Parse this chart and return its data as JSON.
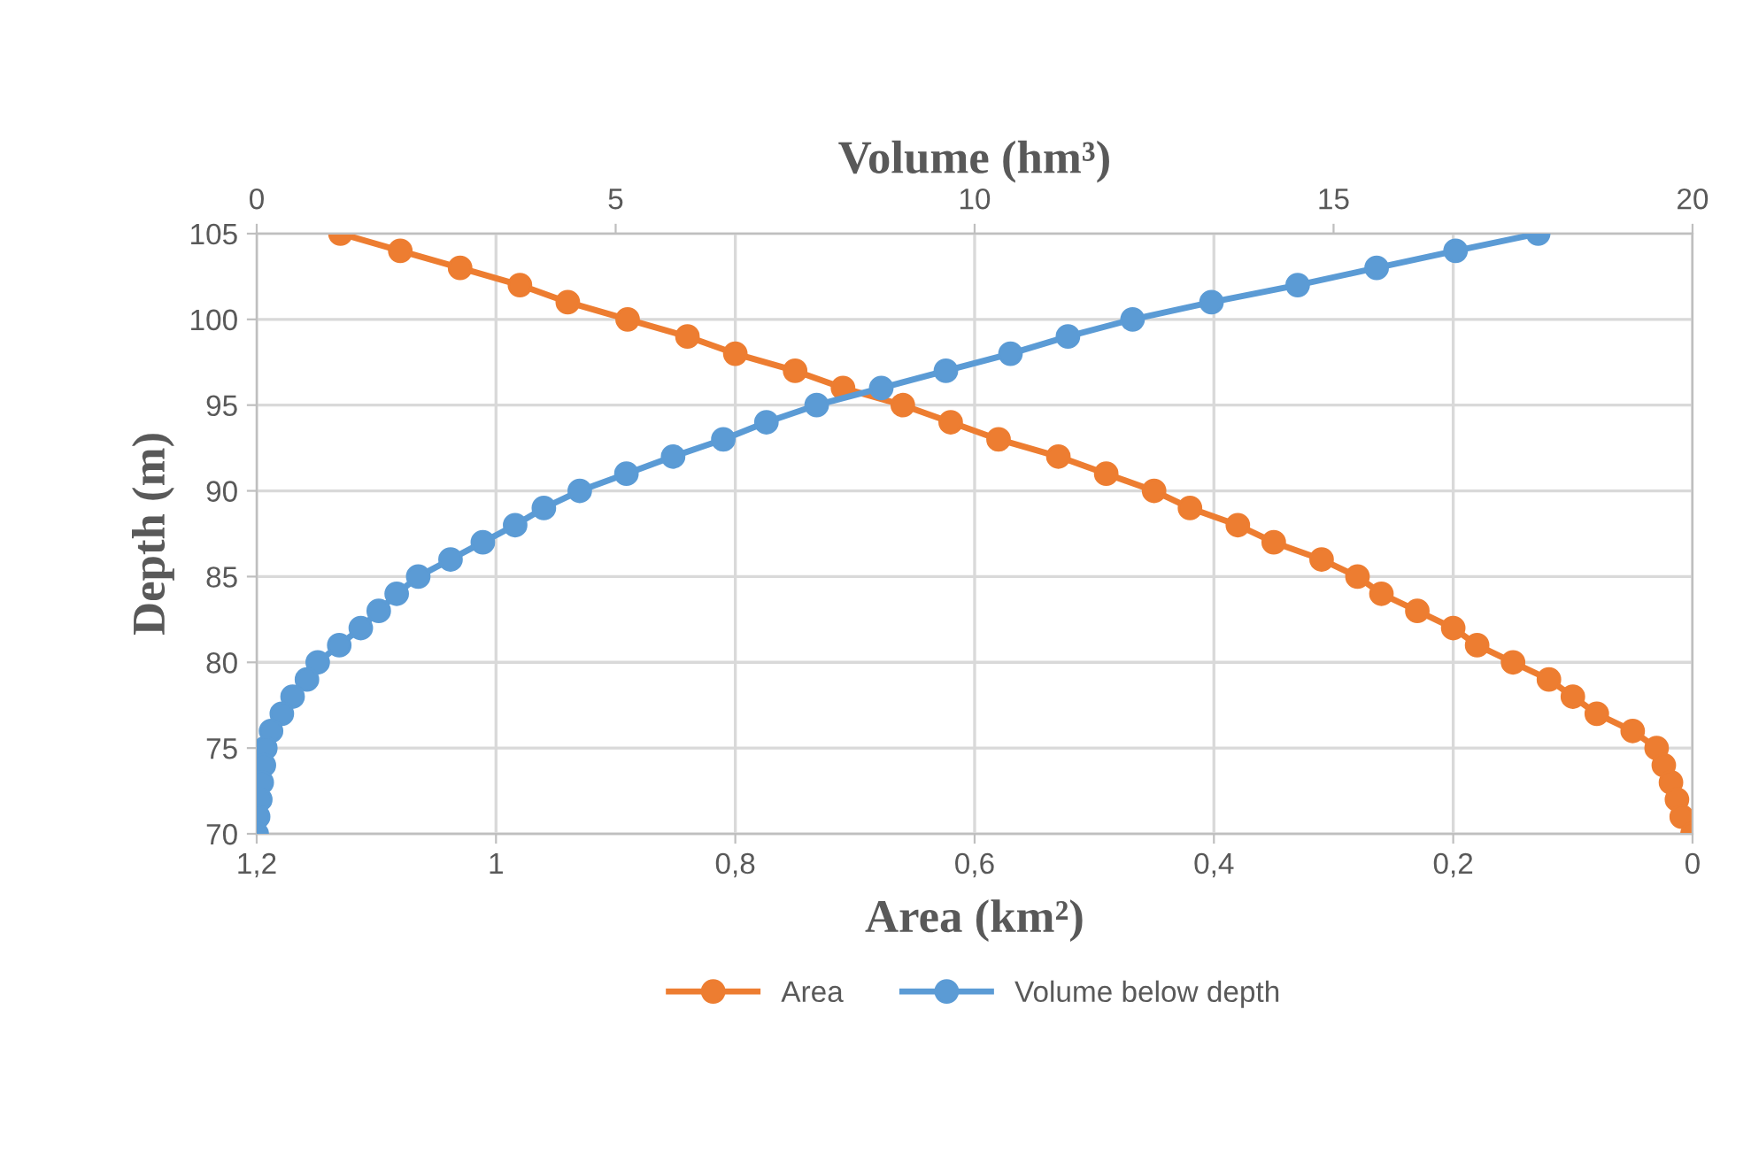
{
  "chart_data": {
    "type": "line",
    "xlabel": "Area (km²)",
    "x2label": "Volume (hm³)",
    "ylabel": "Depth (m)",
    "xlim": [
      1.2,
      0
    ],
    "xticks": [
      {
        "value": 1.2,
        "label": "1,2"
      },
      1,
      {
        "value": 0.8,
        "label": "0,8"
      },
      {
        "value": 0.6,
        "label": "0,6"
      },
      {
        "value": 0.4,
        "label": "0,4"
      },
      {
        "value": 0.2,
        "label": "0,2"
      },
      0
    ],
    "x2lim": [
      0,
      20
    ],
    "x2ticks": [
      0,
      5,
      10,
      15,
      20
    ],
    "ylim": [
      70,
      105
    ],
    "yticks": [
      70,
      75,
      80,
      85,
      90,
      95,
      100,
      105
    ],
    "grid": true,
    "legend": "bottom",
    "marker": "circle",
    "line_style": "solid",
    "series": [
      {
        "name": "Area",
        "color": "#ed7d31",
        "x": [
          1.13,
          1.08,
          1.03,
          0.98,
          0.94,
          0.89,
          0.84,
          0.8,
          0.75,
          0.71,
          0.66,
          0.62,
          0.58,
          0.53,
          0.49,
          0.45,
          0.42,
          0.38,
          0.35,
          0.31,
          0.28,
          0.26,
          0.23,
          0.2,
          0.18,
          0.15,
          0.12,
          0.1,
          0.08,
          0.05,
          0.03,
          0.024,
          0.018,
          0.013,
          0.009,
          0.0
        ],
        "values": [
          105,
          104,
          103,
          102,
          101,
          100,
          99,
          98,
          97,
          96,
          95,
          94,
          93,
          92,
          91,
          90,
          89,
          88,
          87,
          86,
          85,
          84,
          83,
          82,
          81,
          80,
          79,
          78,
          77,
          76,
          75,
          74,
          73,
          72,
          71,
          70
        ]
      },
      {
        "name": "Volume below depth",
        "color": "#5b9bd5",
        "axis": "x2",
        "x": [
          17.85,
          16.7,
          15.6,
          14.5,
          13.3,
          12.2,
          11.3,
          10.5,
          9.6,
          8.7,
          7.8,
          7.1,
          6.5,
          5.8,
          5.15,
          4.5,
          4.0,
          3.6,
          3.15,
          2.7,
          2.25,
          1.95,
          1.7,
          1.45,
          1.15,
          0.85,
          0.7,
          0.5,
          0.35,
          0.2,
          0.12,
          0.1,
          0.07,
          0.05,
          0.02,
          0.0
        ],
        "values": [
          105,
          104,
          103,
          102,
          101,
          100,
          99,
          98,
          97,
          96,
          95,
          94,
          93,
          92,
          91,
          90,
          89,
          88,
          87,
          86,
          85,
          84,
          83,
          82,
          81,
          80,
          79,
          78,
          77,
          76,
          75,
          74,
          73,
          72,
          71,
          70
        ]
      }
    ]
  }
}
